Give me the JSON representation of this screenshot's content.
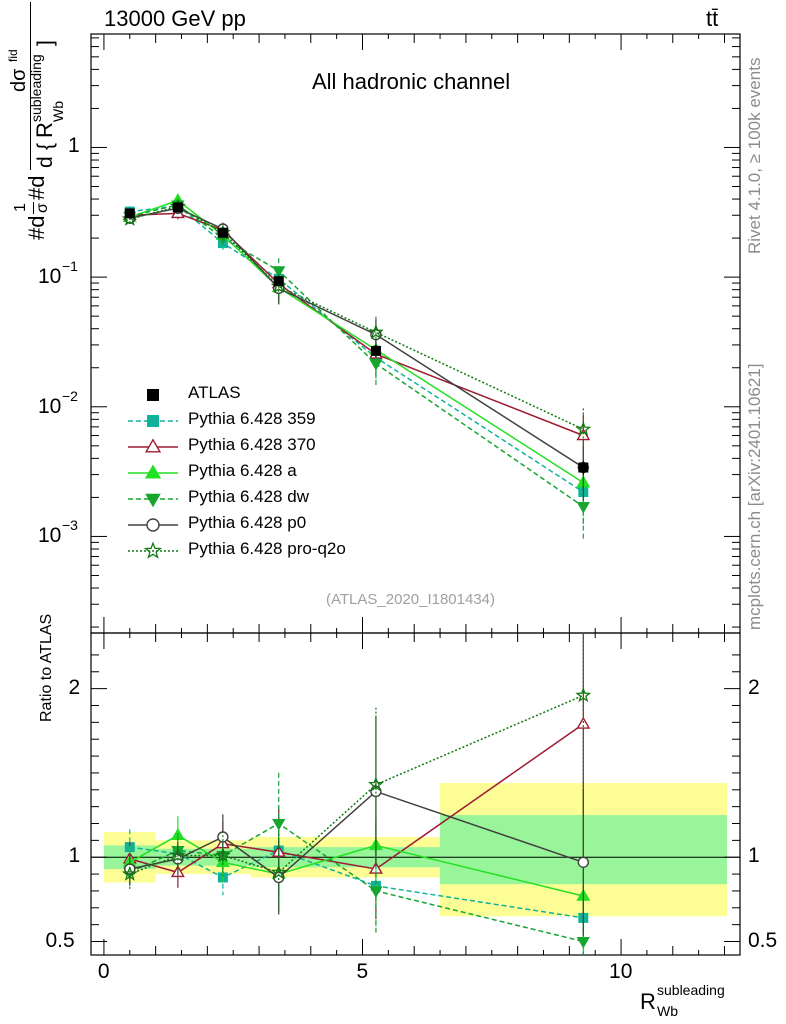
{
  "header": {
    "left": "13000 GeV pp",
    "right": "tt̄"
  },
  "side_labels": {
    "rivet": "Rivet 4.1.0, ≥ 100k events",
    "mcplots": "mcplots.cern.ch [arXiv:2401.10621]"
  },
  "chart_data": [
    {
      "type": "line",
      "panel": "main",
      "title": "All hadronic channel",
      "ylabel_parts": {
        "hash_d": "#d",
        "one": "1",
        "sigma": "σ",
        "ds": "dσ",
        "fid": "fid",
        "d": "d",
        "R": "R",
        "sup": "subleading",
        "sub": "Wb"
      },
      "ylog": true,
      "ylim": [
        0.00018,
        7.5
      ],
      "xlim": [
        -0.25,
        12.3
      ],
      "yticks": [
        {
          "v": 0.001,
          "base": "10",
          "exp": "−3"
        },
        {
          "v": 0.01,
          "base": "10",
          "exp": "−2"
        },
        {
          "v": 0.1,
          "base": "10",
          "exp": "−1"
        },
        {
          "v": 1,
          "label": "1"
        }
      ],
      "analysis_tag": "(ATLAS_2020_I1801434)",
      "data": {
        "name": "ATLAS",
        "x": [
          0.5,
          1.43,
          2.3,
          3.38,
          5.26,
          9.27
        ],
        "y": [
          0.31,
          0.345,
          0.22,
          0.093,
          0.027,
          0.0034
        ],
        "yerr": [
          0.025,
          0.025,
          0.015,
          0.007,
          0.003,
          0.0004
        ],
        "xband": [
          [
            0,
            1
          ],
          [
            0.92,
            1.88
          ],
          [
            1.88,
            2.84
          ],
          [
            2.84,
            4.2
          ],
          [
            4.2,
            6.5
          ],
          [
            6.5,
            12.05
          ]
        ]
      },
      "series": [
        {
          "name": "Pythia 6.428 359",
          "color": "#0fb39a",
          "dash": "5,3",
          "marker": "square",
          "x": [
            0.5,
            1.43,
            2.3,
            3.38,
            5.26,
            9.27
          ],
          "y": [
            0.32,
            0.355,
            0.183,
            0.097,
            0.024,
            0.0022
          ]
        },
        {
          "name": "Pythia 6.428 370",
          "color": "#9e1b32",
          "dash": "",
          "marker": "triangle-open",
          "x": [
            0.5,
            1.43,
            2.3,
            3.38,
            5.26,
            9.27
          ],
          "y": [
            0.3,
            0.31,
            0.23,
            0.089,
            0.0255,
            0.006
          ]
        },
        {
          "name": "Pythia 6.428 a",
          "color": "#22e022",
          "dash": "",
          "marker": "triangle",
          "x": [
            0.5,
            1.43,
            2.3,
            3.38,
            5.26,
            9.27
          ],
          "y": [
            0.29,
            0.39,
            0.21,
            0.083,
            0.0275,
            0.0026
          ]
        },
        {
          "name": "Pythia 6.428 dw",
          "color": "#16a52e",
          "dash": "5,3",
          "marker": "triangle-down",
          "x": [
            0.5,
            1.43,
            2.3,
            3.38,
            5.26,
            9.27
          ],
          "y": [
            0.295,
            0.36,
            0.2,
            0.112,
            0.0215,
            0.0017
          ]
        },
        {
          "name": "Pythia 6.428 p0",
          "color": "#404040",
          "dash": "",
          "marker": "circle-open",
          "x": [
            0.5,
            1.43,
            2.3,
            3.38,
            5.26,
            9.27
          ],
          "y": [
            0.285,
            0.34,
            0.235,
            0.082,
            0.036,
            0.0034
          ]
        },
        {
          "name": "Pythia 6.428 pro-q2o",
          "color": "#117a11",
          "dash": "2,2",
          "marker": "star",
          "x": [
            0.5,
            1.43,
            2.3,
            3.38,
            5.26,
            9.27
          ],
          "y": [
            0.28,
            0.35,
            0.22,
            0.085,
            0.0375,
            0.0067
          ]
        }
      ]
    },
    {
      "type": "line",
      "panel": "ratio",
      "ylabel": "Ratio to ATLAS",
      "xlabel_parts": {
        "R": "R",
        "sup": "subleading",
        "sub": "Wb"
      },
      "ylim": [
        0.42,
        2.33
      ],
      "xlim": [
        -0.25,
        12.3
      ],
      "xticks": [
        0,
        5,
        10
      ],
      "xtick_labels": [
        "0",
        "5",
        "10"
      ],
      "yticks": [
        0.5,
        1,
        2
      ],
      "ytick_labels": [
        "0.5",
        "1",
        "2"
      ],
      "reference": 1,
      "band_inner": [
        [
          0.93,
          1.07
        ],
        [
          0.95,
          1.05
        ],
        [
          0.95,
          1.05
        ],
        [
          0.94,
          1.06
        ],
        [
          0.94,
          1.06
        ],
        [
          0.84,
          1.25
        ]
      ],
      "band_outer": [
        [
          0.85,
          1.15
        ],
        [
          0.9,
          1.1
        ],
        [
          0.9,
          1.1
        ],
        [
          0.88,
          1.12
        ],
        [
          0.88,
          1.12
        ],
        [
          0.65,
          1.44
        ]
      ],
      "series": [
        {
          "name": "Pythia 6.428 359",
          "ratios": [
            1.06,
            1.02,
            0.88,
            1.04,
            0.83,
            0.64
          ]
        },
        {
          "name": "Pythia 6.428 370",
          "ratios": [
            0.99,
            0.91,
            1.08,
            1.03,
            0.93,
            1.79
          ]
        },
        {
          "name": "Pythia 6.428 a",
          "ratios": [
            0.97,
            1.13,
            0.97,
            0.9,
            1.07,
            0.77
          ]
        },
        {
          "name": "Pythia 6.428 dw",
          "ratios": [
            0.91,
            1.04,
            1.01,
            1.2,
            0.8,
            0.5
          ]
        },
        {
          "name": "Pythia 6.428 p0",
          "ratios": [
            0.93,
            0.99,
            1.12,
            0.88,
            1.39,
            0.97
          ]
        },
        {
          "name": "Pythia 6.428 pro-q2o",
          "ratios": [
            0.9,
            1.01,
            1.01,
            0.91,
            1.43,
            1.96
          ]
        }
      ],
      "errs": [
        0.1,
        0.1,
        0.12,
        0.25,
        0.32,
        0.45
      ]
    }
  ]
}
